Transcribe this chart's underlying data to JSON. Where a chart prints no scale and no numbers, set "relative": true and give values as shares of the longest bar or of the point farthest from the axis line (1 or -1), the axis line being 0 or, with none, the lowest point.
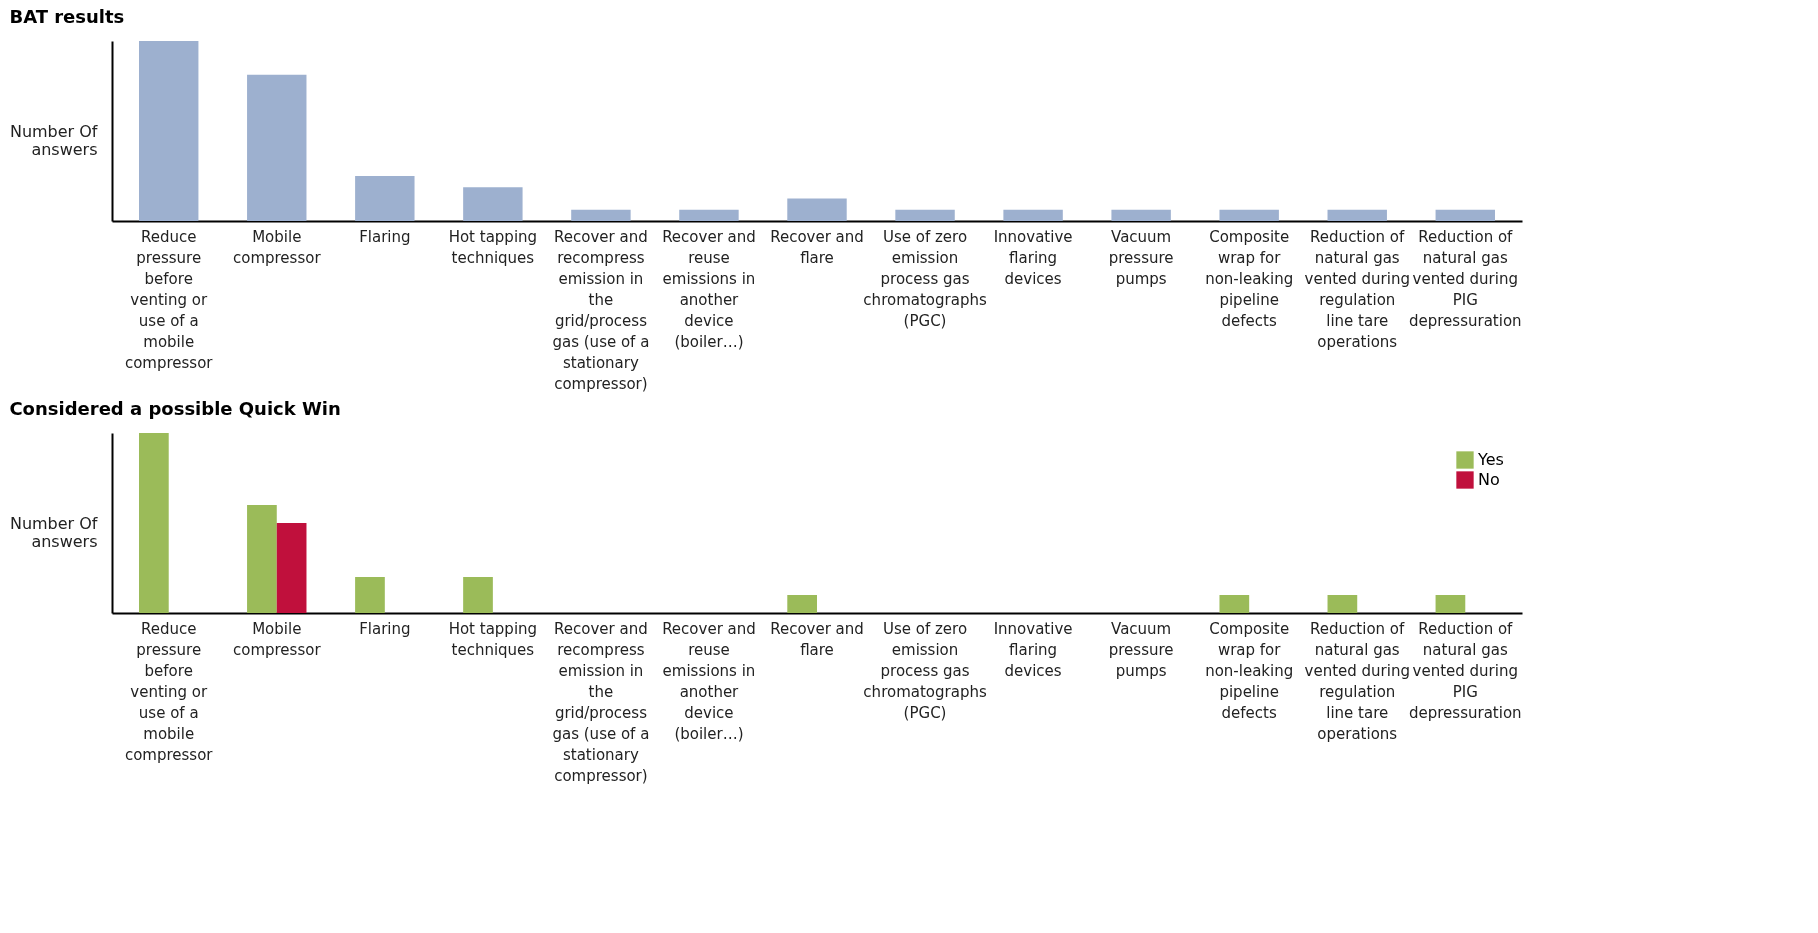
{
  "chart_data": [
    {
      "type": "bar",
      "title": "BAT results",
      "ylabel": "Number Of answers",
      "relative": true,
      "grid": false,
      "categories": [
        "Reduce pressure before venting or use of a mobile compressor",
        "Mobile compressor",
        "Flaring",
        "Hot tapping techniques",
        "Recover and recompress emission in the grid/process gas (use of a stationary compressor)",
        "Recover and reuse emissions in another device (boiler…)",
        "Recover and flare",
        "Use of zero emission process gas chromatographs (PGC)",
        "Innovative flaring devices",
        "Vacuum pressure pumps",
        "Composite wrap for non-leaking pipeline defects",
        "Reduction of natural gas vented during regulation line tare operations",
        "Reduction of natural gas vented during PIG depressuration"
      ],
      "series": [
        {
          "color": "#9db0cf",
          "values": [
            1,
            0.8125,
            0.25,
            0.1875,
            0.0625,
            0.0625,
            0.125,
            0.0625,
            0.0625,
            0.0625,
            0.0625,
            0.0625,
            0.0625
          ]
        }
      ]
    },
    {
      "type": "bar",
      "title": "Considered a possible Quick Win",
      "ylabel": "Number Of answers",
      "relative": true,
      "legend": "top right",
      "grid": false,
      "categories": [
        "Reduce pressure before venting or use of a mobile compressor",
        "Mobile compressor",
        "Flaring",
        "Hot tapping techniques",
        "Recover and recompress emission in the grid/process gas (use of a stationary compressor)",
        "Recover and reuse emissions in another device (boiler…)",
        "Recover and flare",
        "Use of zero emission process gas chromatographs (PGC)",
        "Innovative flaring devices",
        "Vacuum pressure pumps",
        "Composite wrap for non-leaking pipeline defects",
        "Reduction of natural gas vented during regulation line tare operations",
        "Reduction of natural gas vented during PIG depressuration"
      ],
      "series": [
        {
          "name": "Yes",
          "color": "#9bbb59",
          "values": [
            1,
            0.6,
            0.2,
            0.2,
            0,
            0,
            0.1,
            0,
            0,
            0,
            0.1,
            0.1,
            0.1
          ]
        },
        {
          "name": "No",
          "color": "#c0103c",
          "values": [
            0,
            0.5,
            0,
            0,
            0,
            0,
            0,
            0,
            0,
            0,
            0,
            0,
            0
          ]
        }
      ]
    }
  ]
}
